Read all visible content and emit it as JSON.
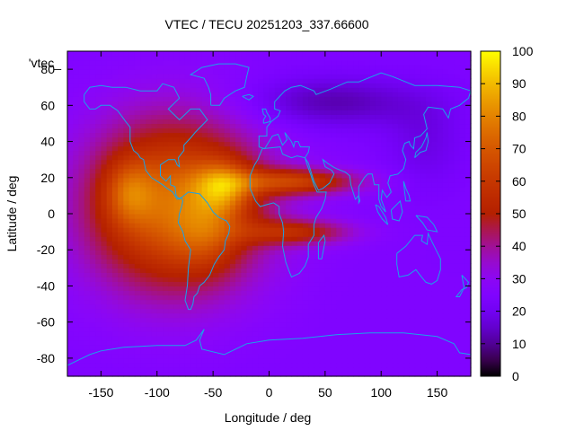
{
  "chart_data": {
    "type": "heatmap",
    "title": "VTEC / TECU 20251203_337.66600",
    "xlabel": "Longitude / deg",
    "ylabel": "Latitude / deg",
    "xlim": [
      -180,
      180
    ],
    "ylim": [
      -90,
      90
    ],
    "x_ticks": [
      -150,
      -100,
      -50,
      0,
      50,
      100,
      150
    ],
    "y_ticks": [
      -80,
      -60,
      -40,
      -20,
      0,
      20,
      40,
      60,
      80
    ],
    "colorbar": {
      "range": [
        0,
        100
      ],
      "ticks": [
        0,
        10,
        20,
        30,
        40,
        50,
        60,
        70,
        80,
        90,
        100
      ],
      "palette": "black-blue-purple-red-orange-yellow"
    },
    "legend": "'vtec_",
    "legend_position": "top-left",
    "overlay": "coastlines",
    "field": {
      "background": 25,
      "blobs": [
        {
          "lon": -85,
          "lat": 5,
          "sigma_lon": 55,
          "sigma_lat": 33,
          "amp": 50
        },
        {
          "lon": -40,
          "lat": 15,
          "sigma_lon": 18,
          "sigma_lat": 10,
          "amp": 27
        },
        {
          "lon": -125,
          "lat": 12,
          "sigma_lon": 15,
          "sigma_lat": 12,
          "amp": 18
        },
        {
          "lon": -55,
          "lat": -10,
          "sigma_lon": 20,
          "sigma_lat": 15,
          "amp": 12
        },
        {
          "lon": 25,
          "lat": 18,
          "sigma_lon": 40,
          "sigma_lat": 5,
          "amp": 33
        },
        {
          "lon": 25,
          "lat": -10,
          "sigma_lon": 35,
          "sigma_lat": 5,
          "amp": 25
        },
        {
          "lon": 55,
          "lat": 62,
          "sigma_lon": 55,
          "sigma_lat": 10,
          "amp": -13
        },
        {
          "lon": 140,
          "lat": 40,
          "sigma_lon": 25,
          "sigma_lat": 18,
          "amp": -7
        }
      ]
    }
  }
}
